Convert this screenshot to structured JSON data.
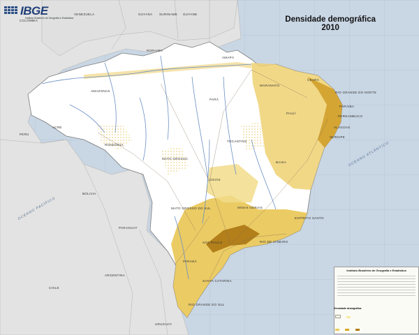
{
  "header": {
    "logo_text": "IBGE",
    "logo_subtitle": "Instituto Brasileiro de Geografia e Estatística",
    "title_line1": "Densidade demográfica",
    "title_line2": "2010"
  },
  "countries": {
    "venezuela": "VENEZUELA",
    "colombia": "COLOMBIA",
    "guyana": "GUYANA",
    "suriname": "SURINAME",
    "guyane": "GUYANE",
    "peru": "PERU",
    "bolivia": "BOLIVIA",
    "paraguay": "PARAGUAY",
    "argentina": "ARGENTINA",
    "uruguay": "URUGUAY",
    "chile": "CHILE"
  },
  "oceans": {
    "pacific": "OCEANO PACÍFICO",
    "atlantic": "OCEANO ATLÂNTICO"
  },
  "states": {
    "amazonas": "AMAZONAS",
    "para": "PARÁ",
    "mato_grosso": "MATO GROSSO",
    "rondonia": "RONDÔNIA",
    "acre": "ACRE",
    "goias": "GOIÁS",
    "tocantins": "TOCANTINS",
    "bahia": "BAHIA",
    "minas_gerais": "MINAS GERAIS",
    "mato_grosso_do_sul": "MATO GROSSO DO SUL",
    "sao_paulo": "SÃO PAULO",
    "parana": "PARANÁ",
    "santa_catarina": "SANTA CATARINA",
    "rio_grande_do_sul": "RIO GRANDE DO SUL",
    "rio_de_janeiro": "RIO DE JANEIRO",
    "espirito_santo": "ESPÍRITO SANTO",
    "ceara": "CEARÁ",
    "rio_grande_do_norte": "RIO GRANDE DO NORTE",
    "paraiba": "PARAÍBA",
    "pernambuco": "PERNAMBUCO",
    "alagoas": "ALAGOAS",
    "sergipe": "SERGIPE",
    "roraima": "RORAIMA",
    "amapa": "AMAPÁ",
    "maranhao": "MARANHÃO",
    "piaui": "PIAUÍ"
  },
  "legend": {
    "header": "Instituto Brasileiro de Geografia e Estatística",
    "classes_title": "Densidade demográfica",
    "colors": [
      "#fffde0",
      "#f6e9a0",
      "#e9cd5a",
      "#d6aa2a",
      "#b37d12",
      "#7a4e0a"
    ]
  },
  "colors": {
    "ocean": "#c9d6e4",
    "neighbors": "#e3e3e3",
    "brazil_base": "#ffffff",
    "density_low": "#f3e19a",
    "density_mid": "#e2bd45",
    "density_high": "#b88414",
    "rivers": "#6a8fc4",
    "roads": "#7d6a58"
  }
}
